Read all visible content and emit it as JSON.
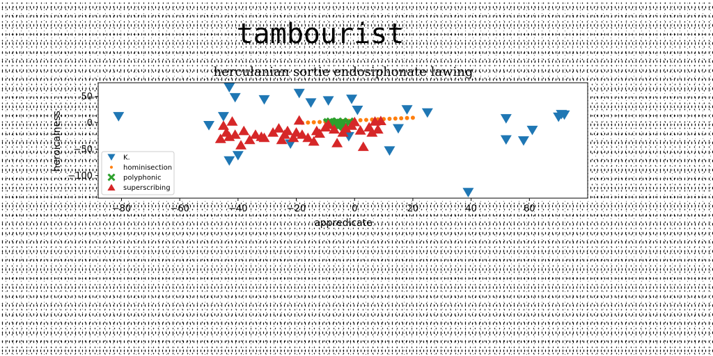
{
  "chart_data": {
    "type": "scatter",
    "suptitle": "tambourist",
    "title": "herculanian sortie endosiphonate lawing",
    "xlabel": "appredicate",
    "ylabel": "heroicalness",
    "xlim": [
      -88,
      80
    ],
    "ylim": [
      -143,
      76
    ],
    "xticks": [
      -80,
      -60,
      -40,
      -20,
      0,
      20,
      40,
      60
    ],
    "yticks": [
      50,
      0,
      -50,
      -100
    ],
    "grid": false,
    "legend_position": "lower-left",
    "series": [
      {
        "name": "K.",
        "marker": "triangle-down",
        "color": "#1f77b4",
        "points": [
          [
            -81,
            12
          ],
          [
            -50,
            -5
          ],
          [
            -45,
            12
          ],
          [
            -43,
            67
          ],
          [
            -41,
            48
          ],
          [
            -40,
            -62
          ],
          [
            -43,
            -72
          ],
          [
            -31,
            44
          ],
          [
            -22,
            -40
          ],
          [
            -19,
            56
          ],
          [
            -15,
            38
          ],
          [
            -9,
            42
          ],
          [
            -1,
            45
          ],
          [
            1,
            24
          ],
          [
            -2,
            -26
          ],
          [
            12,
            -53
          ],
          [
            15,
            -11
          ],
          [
            18,
            25
          ],
          [
            25,
            19
          ],
          [
            39,
            -132
          ],
          [
            52,
            8
          ],
          [
            52,
            -32
          ],
          [
            58,
            -34
          ],
          [
            61,
            -14
          ],
          [
            70,
            11
          ],
          [
            72,
            15
          ],
          [
            71,
            16
          ]
        ]
      },
      {
        "name": "hominisection",
        "marker": "circle",
        "color": "#ff7f0e",
        "points": [
          [
            -18,
            0
          ],
          [
            -16,
            0.5
          ],
          [
            -14,
            1
          ],
          [
            -12,
            1.5
          ],
          [
            -10,
            2
          ],
          [
            -8,
            2.5
          ],
          [
            -6,
            3
          ],
          [
            -4,
            3.5
          ],
          [
            -2,
            4
          ],
          [
            0,
            4.5
          ],
          [
            2,
            5
          ],
          [
            4,
            5.5
          ],
          [
            6,
            6
          ],
          [
            8,
            6.5
          ],
          [
            10,
            7
          ],
          [
            12,
            7.5
          ],
          [
            14,
            8
          ],
          [
            16,
            8.5
          ],
          [
            18,
            9
          ],
          [
            20,
            9.5
          ]
        ]
      },
      {
        "name": "polyphonic",
        "marker": "x-filled",
        "color": "#2ca02c",
        "points": [
          [
            -9,
            -1
          ],
          [
            -8,
            0
          ],
          [
            -7,
            -2
          ],
          [
            -6,
            0
          ],
          [
            -5,
            -3
          ],
          [
            -4,
            -1
          ],
          [
            -3,
            -4
          ],
          [
            -2,
            0
          ],
          [
            -6,
            -5
          ],
          [
            -8,
            -4
          ]
        ]
      },
      {
        "name": "superscribing",
        "marker": "triangle-up",
        "color": "#d62728",
        "points": [
          [
            -46,
            -30
          ],
          [
            -45,
            -5
          ],
          [
            -44,
            -18
          ],
          [
            -43,
            -26
          ],
          [
            -42,
            3
          ],
          [
            -41,
            -22
          ],
          [
            -39,
            -42
          ],
          [
            -38,
            -15
          ],
          [
            -36,
            -32
          ],
          [
            -34,
            -22
          ],
          [
            -32,
            -26
          ],
          [
            -31,
            -28
          ],
          [
            -28,
            -18
          ],
          [
            -26,
            -10
          ],
          [
            -25,
            -32
          ],
          [
            -24,
            -22
          ],
          [
            -23,
            -15
          ],
          [
            -21,
            -28
          ],
          [
            -20,
            -18
          ],
          [
            -19,
            5
          ],
          [
            -18,
            -22
          ],
          [
            -16,
            -28
          ],
          [
            -14,
            -35
          ],
          [
            -13,
            -15
          ],
          [
            -12,
            -20
          ],
          [
            -10,
            -8
          ],
          [
            -9,
            -3
          ],
          [
            -7,
            -12
          ],
          [
            -6,
            -38
          ],
          [
            -4,
            -18
          ],
          [
            -3,
            -10
          ],
          [
            -1,
            -5
          ],
          [
            0,
            2
          ],
          [
            2,
            -14
          ],
          [
            3,
            -45
          ],
          [
            5,
            -8
          ],
          [
            6,
            -18
          ],
          [
            7,
            3
          ],
          [
            8,
            -12
          ],
          [
            9,
            4
          ]
        ]
      }
    ]
  }
}
